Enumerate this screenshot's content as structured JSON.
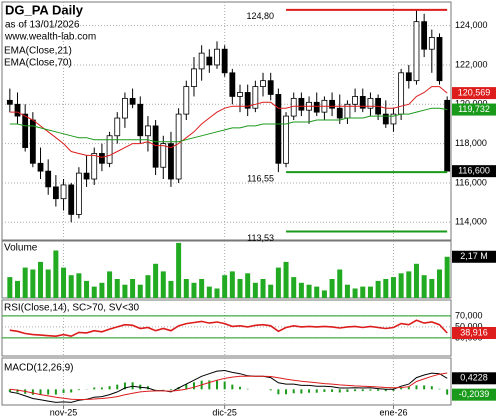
{
  "chart_data": [
    {
      "type": "candlestick",
      "title": "DG_PA Daily",
      "subtitle": "as of 13/01/2026",
      "source": "www.wealth-lab.com",
      "categories": [
        null,
        null,
        null,
        null,
        null,
        null,
        null,
        "nov-25",
        null,
        null,
        null,
        null,
        null,
        null,
        null,
        null,
        null,
        null,
        null,
        null,
        null,
        null,
        null,
        null,
        null,
        null,
        null,
        null,
        "dic-25",
        null,
        null,
        null,
        null,
        null,
        null,
        null,
        null,
        null,
        null,
        null,
        null,
        null,
        null,
        null,
        null,
        null,
        null,
        null,
        null,
        null,
        "ene-26",
        null,
        null,
        null,
        null,
        null,
        null,
        null
      ],
      "open": [
        120.2,
        120.0,
        119.5,
        119.2,
        117.0,
        116.6,
        115.8,
        115.2,
        115.9,
        114.4,
        116.5,
        116.2,
        117.5,
        117.0,
        118.4,
        119.3,
        120.3,
        120.0,
        118.4,
        118.9,
        116.8,
        118.0,
        116.2,
        119.5,
        120.9,
        121.8,
        122.4,
        122.0,
        122.8,
        121.6,
        120.4,
        120.6,
        119.8,
        120.9,
        121.2,
        120.5,
        117.0,
        119.4,
        120.3,
        119.7,
        120.1,
        119.6,
        120.2,
        119.8,
        119.3,
        120.0,
        120.4,
        119.8,
        120.3,
        119.5,
        119.0,
        119.5,
        121.6,
        121.2,
        124.2,
        122.8,
        123.4,
        120.2
      ],
      "high": [
        120.8,
        120.6,
        120.0,
        119.6,
        117.8,
        117.2,
        116.4,
        116.2,
        116.0,
        116.8,
        117.4,
        117.8,
        118.0,
        118.6,
        119.6,
        120.6,
        120.8,
        120.4,
        119.4,
        119.2,
        118.4,
        118.6,
        119.8,
        121.2,
        122.4,
        123.0,
        122.8,
        123.2,
        123.0,
        121.8,
        121.0,
        121.0,
        121.2,
        121.6,
        121.6,
        120.8,
        119.6,
        120.6,
        120.6,
        120.4,
        120.6,
        120.4,
        120.6,
        120.5,
        120.2,
        120.8,
        120.8,
        120.6,
        120.5,
        120.2,
        119.8,
        121.8,
        122.0,
        124.8,
        124.6,
        123.8,
        123.6,
        120.4
      ],
      "low": [
        119.6,
        119.0,
        117.6,
        116.8,
        116.2,
        115.4,
        114.8,
        114.6,
        114.0,
        114.2,
        115.8,
        115.9,
        116.6,
        116.8,
        118.0,
        118.8,
        119.8,
        118.0,
        117.6,
        116.4,
        116.2,
        115.8,
        116.0,
        119.2,
        120.4,
        121.2,
        121.6,
        121.8,
        121.4,
        120.0,
        119.6,
        119.4,
        119.6,
        120.4,
        120.2,
        116.55,
        116.8,
        119.2,
        119.4,
        119.0,
        119.4,
        119.2,
        119.4,
        119.0,
        119.0,
        119.6,
        119.6,
        119.4,
        119.2,
        118.8,
        118.6,
        119.2,
        120.8,
        121.0,
        122.4,
        121.6,
        121.0,
        116.6
      ],
      "close": [
        120.0,
        119.4,
        117.8,
        117.0,
        116.6,
        115.8,
        115.2,
        115.9,
        114.4,
        116.5,
        116.2,
        117.5,
        117.0,
        118.4,
        119.3,
        120.3,
        120.0,
        118.4,
        118.9,
        116.8,
        118.0,
        116.2,
        119.5,
        120.9,
        121.8,
        122.6,
        122.0,
        122.8,
        121.6,
        120.4,
        120.6,
        119.8,
        120.9,
        121.2,
        120.5,
        117.0,
        119.4,
        120.3,
        119.7,
        120.1,
        119.6,
        120.2,
        119.8,
        119.3,
        120.0,
        120.4,
        119.8,
        120.3,
        119.5,
        119.0,
        119.5,
        121.6,
        121.2,
        124.2,
        122.8,
        123.4,
        121.2,
        116.6
      ],
      "close_label": {
        "value": 116.6,
        "label": "116,600"
      },
      "series": [
        {
          "name": "EMA(Close,21)",
          "color": "#dd1c1c",
          "values": [
            119.6,
            119.6,
            119.4,
            119.2,
            118.9,
            118.6,
            118.3,
            118.0,
            117.6,
            117.5,
            117.4,
            117.4,
            117.3,
            117.4,
            117.6,
            117.8,
            118.0,
            118.0,
            118.1,
            117.9,
            117.9,
            117.8,
            118.0,
            118.3,
            118.6,
            119.0,
            119.3,
            119.6,
            119.8,
            119.9,
            119.9,
            119.9,
            120.0,
            120.1,
            120.1,
            119.8,
            119.8,
            119.9,
            119.9,
            119.9,
            119.9,
            119.9,
            119.9,
            119.9,
            119.9,
            119.9,
            119.9,
            119.9,
            119.9,
            119.8,
            119.8,
            119.9,
            120.0,
            120.4,
            120.6,
            120.9,
            120.9,
            120.569
          ],
          "price_label": {
            "value": 120.569,
            "label": "120,569"
          }
        },
        {
          "name": "EMA(Close,70)",
          "color": "#1a9a1a",
          "values": [
            119.0,
            119.0,
            118.9,
            118.9,
            118.8,
            118.7,
            118.6,
            118.5,
            118.4,
            118.3,
            118.3,
            118.2,
            118.2,
            118.2,
            118.2,
            118.2,
            118.2,
            118.2,
            118.2,
            118.1,
            118.1,
            118.1,
            118.1,
            118.2,
            118.3,
            118.4,
            118.5,
            118.6,
            118.7,
            118.8,
            118.8,
            118.9,
            118.9,
            119.0,
            119.0,
            119.0,
            119.0,
            119.1,
            119.1,
            119.1,
            119.2,
            119.2,
            119.2,
            119.2,
            119.3,
            119.3,
            119.3,
            119.4,
            119.4,
            119.4,
            119.4,
            119.5,
            119.5,
            119.6,
            119.7,
            119.8,
            119.8,
            119.732
          ],
          "price_label": {
            "value": 119.732,
            "label": "119,732"
          }
        }
      ],
      "lines": [
        {
          "value": 124.8,
          "label": "124,80",
          "color": "#dd1c1c",
          "x": [
            36,
            57
          ]
        },
        {
          "value": 116.55,
          "label": "116,55",
          "color": "#1a9a1a",
          "x": [
            36,
            57
          ]
        },
        {
          "value": 113.53,
          "label": "113,53",
          "color": "#1a9a1a",
          "x": [
            36,
            57
          ]
        }
      ],
      "ylim": [
        113.1,
        125.2
      ],
      "yticks": [
        {
          "value": 114,
          "label": "114,000"
        },
        {
          "value": 116,
          "label": "116,000"
        },
        {
          "value": 118,
          "label": "118,000"
        },
        {
          "value": 120,
          "label": "120,000"
        },
        {
          "value": 122,
          "label": "122,000"
        },
        {
          "value": 124,
          "label": "124,000"
        }
      ],
      "grid": true
    },
    {
      "type": "bar",
      "title": "Volume",
      "color": "#22aa22",
      "values": [
        1.1,
        0.9,
        1.6,
        1.5,
        1.9,
        1.5,
        2.5,
        1.6,
        1.2,
        1.3,
        0.9,
        0.6,
        0.8,
        1.4,
        1.0,
        0.7,
        1.0,
        0.7,
        1.2,
        1.8,
        1.4,
        0.9,
        2.9,
        1.0,
        0.8,
        1.0,
        0.6,
        0.5,
        1.2,
        1.4,
        1.0,
        1.3,
        0.8,
        1.0,
        0.7,
        1.6,
        1.9,
        1.1,
        0.8,
        0.7,
        0.6,
        0.4,
        1.0,
        1.5,
        0.7,
        0.5,
        0.6,
        0.6,
        0.9,
        1.0,
        1.1,
        1.3,
        1.4,
        1.8,
        1.2,
        1.0,
        1.5,
        2.17
      ],
      "last_label": {
        "value": 2.17,
        "label": "2,17 M"
      },
      "ylim": [
        0,
        3.0
      ]
    },
    {
      "type": "line",
      "title": "RSI(Close,14), SC>70, SV<30",
      "series": [
        {
          "name": "RSI(Close,14)",
          "color": "#dd1c1c",
          "values": [
            44,
            42,
            38,
            36,
            35,
            34,
            33,
            36,
            33,
            40,
            39,
            43,
            41,
            46,
            50,
            54,
            53,
            47,
            49,
            43,
            47,
            43,
            52,
            56,
            58,
            60,
            57,
            59,
            56,
            51,
            52,
            50,
            53,
            54,
            52,
            42,
            49,
            52,
            50,
            51,
            50,
            51,
            50,
            48,
            50,
            51,
            49,
            51,
            49,
            47,
            49,
            56,
            54,
            62,
            57,
            59,
            54,
            38.916
          ],
          "price_label": {
            "value": 38.916,
            "label": "38,916"
          }
        }
      ],
      "levels": [
        70,
        30
      ],
      "level_color": "#1a9a1a",
      "ylim": [
        -3,
        99
      ],
      "yticks": [
        {
          "value": 70,
          "label": "70,000"
        },
        {
          "value": 50,
          "label": "50,000"
        },
        {
          "value": 30,
          "label": "30,000"
        }
      ],
      "grid": true
    },
    {
      "type": "macd",
      "title": "MACD(12,26,9)",
      "series": [
        {
          "name": "MACD",
          "color": "#000000",
          "values": [
            -0.1,
            -0.15,
            -0.25,
            -0.35,
            -0.4,
            -0.45,
            -0.5,
            -0.48,
            -0.5,
            -0.42,
            -0.38,
            -0.3,
            -0.28,
            -0.2,
            -0.1,
            0.05,
            0.12,
            0.08,
            0.05,
            -0.05,
            -0.05,
            -0.1,
            0.05,
            0.2,
            0.35,
            0.5,
            0.6,
            0.7,
            0.72,
            0.65,
            0.6,
            0.52,
            0.5,
            0.5,
            0.45,
            0.25,
            0.2,
            0.2,
            0.15,
            0.15,
            0.12,
            0.12,
            0.1,
            0.05,
            0.05,
            0.06,
            0.05,
            0.06,
            0.03,
            0.0,
            0.0,
            0.12,
            0.2,
            0.45,
            0.55,
            0.62,
            0.6,
            0.4228
          ],
          "price_label": {
            "value": 0.4228,
            "label": "0,4228"
          }
        },
        {
          "name": "Signal",
          "color": "#dd1c1c",
          "values": [
            0.0,
            -0.03,
            -0.08,
            -0.14,
            -0.2,
            -0.25,
            -0.3,
            -0.34,
            -0.38,
            -0.39,
            -0.39,
            -0.37,
            -0.35,
            -0.32,
            -0.28,
            -0.21,
            -0.15,
            -0.1,
            -0.07,
            -0.06,
            -0.06,
            -0.07,
            -0.04,
            0.01,
            0.08,
            0.17,
            0.26,
            0.35,
            0.42,
            0.47,
            0.5,
            0.5,
            0.5,
            0.5,
            0.49,
            0.44,
            0.39,
            0.35,
            0.31,
            0.28,
            0.25,
            0.22,
            0.2,
            0.17,
            0.15,
            0.13,
            0.12,
            0.11,
            0.09,
            0.07,
            0.06,
            0.07,
            0.1,
            0.3,
            0.4,
            0.5,
            0.58,
            0.6267
          ]
        }
      ],
      "histogram": {
        "name": "Histogram",
        "color": "#1a9a1a",
        "values": [
          -0.1,
          -0.12,
          -0.17,
          -0.21,
          -0.2,
          -0.2,
          -0.2,
          -0.14,
          -0.12,
          -0.03,
          0.01,
          0.07,
          0.07,
          0.12,
          0.18,
          0.26,
          0.27,
          0.18,
          0.12,
          0.01,
          0.01,
          -0.03,
          0.09,
          0.19,
          0.27,
          0.33,
          0.34,
          0.35,
          0.3,
          0.18,
          0.1,
          0.02,
          0,
          0,
          -0.04,
          -0.19,
          -0.19,
          -0.15,
          -0.16,
          -0.13,
          -0.13,
          -0.1,
          -0.1,
          -0.12,
          -0.1,
          -0.07,
          -0.07,
          -0.05,
          -0.06,
          -0.07,
          -0.06,
          0.05,
          0.1,
          0.15,
          0.15,
          0.12,
          0.02,
          -0.2039
        ],
        "price_label": {
          "value": -0.2039,
          "label": "-0,2039"
        }
      },
      "ylim": [
        -0.6,
        1.2
      ]
    }
  ]
}
